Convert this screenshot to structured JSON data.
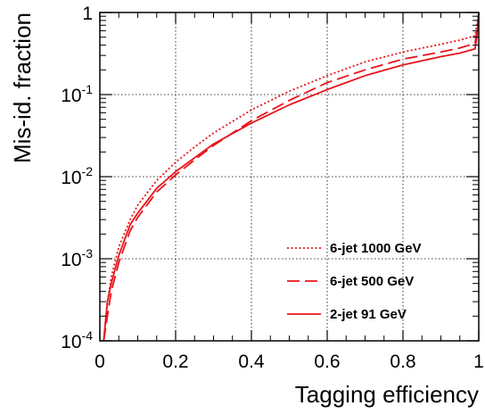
{
  "chart_data": {
    "type": "line",
    "xlabel": "Tagging efficiency",
    "ylabel": "Mis-id. fraction",
    "xlim": [
      0,
      1
    ],
    "ylim": [
      0.0001,
      1
    ],
    "yscale": "log",
    "grid": true,
    "legend_position": "bottom-right",
    "x_ticks": [
      "0",
      "0.2",
      "0.4",
      "0.6",
      "0.8",
      "1"
    ],
    "y_ticks": [
      {
        "base": "1",
        "exp": ""
      },
      {
        "base": "10",
        "exp": "-1"
      },
      {
        "base": "10",
        "exp": "-2"
      },
      {
        "base": "10",
        "exp": "-3"
      },
      {
        "base": "10",
        "exp": "-4"
      }
    ],
    "series": [
      {
        "name": "6-jet 1000 GeV",
        "style": "dotted",
        "color": "#e8141c",
        "x": [
          0.01,
          0.02,
          0.03,
          0.05,
          0.08,
          0.1,
          0.15,
          0.2,
          0.25,
          0.3,
          0.4,
          0.5,
          0.6,
          0.7,
          0.8,
          0.9,
          0.95,
          0.99,
          0.995,
          1.0
        ],
        "y": [
          0.0001,
          0.0003,
          0.0006,
          0.0014,
          0.003,
          0.0045,
          0.009,
          0.015,
          0.023,
          0.034,
          0.065,
          0.11,
          0.17,
          0.25,
          0.33,
          0.41,
          0.46,
          0.52,
          0.7,
          1.0
        ]
      },
      {
        "name": "6-jet 500 GeV",
        "style": "dashed",
        "color": "#e8141c",
        "x": [
          0.01,
          0.02,
          0.03,
          0.05,
          0.08,
          0.1,
          0.15,
          0.2,
          0.25,
          0.3,
          0.4,
          0.5,
          0.6,
          0.7,
          0.8,
          0.9,
          0.95,
          0.99,
          0.995,
          1.0
        ],
        "y": [
          0.0001,
          0.0002,
          0.0004,
          0.0009,
          0.0022,
          0.0032,
          0.0065,
          0.0105,
          0.016,
          0.024,
          0.048,
          0.085,
          0.14,
          0.2,
          0.27,
          0.33,
          0.37,
          0.42,
          0.6,
          1.0
        ]
      },
      {
        "name": "2-jet 91 GeV",
        "style": "solid",
        "color": "#e8141c",
        "x": [
          0.01,
          0.02,
          0.03,
          0.05,
          0.08,
          0.1,
          0.15,
          0.2,
          0.25,
          0.3,
          0.4,
          0.5,
          0.6,
          0.7,
          0.8,
          0.9,
          0.95,
          0.99,
          0.995,
          1.0
        ],
        "y": [
          0.0001,
          0.0003,
          0.0005,
          0.0011,
          0.0026,
          0.0036,
          0.0072,
          0.0115,
          0.017,
          0.025,
          0.045,
          0.075,
          0.115,
          0.17,
          0.23,
          0.29,
          0.32,
          0.36,
          0.5,
          1.0
        ]
      }
    ]
  }
}
